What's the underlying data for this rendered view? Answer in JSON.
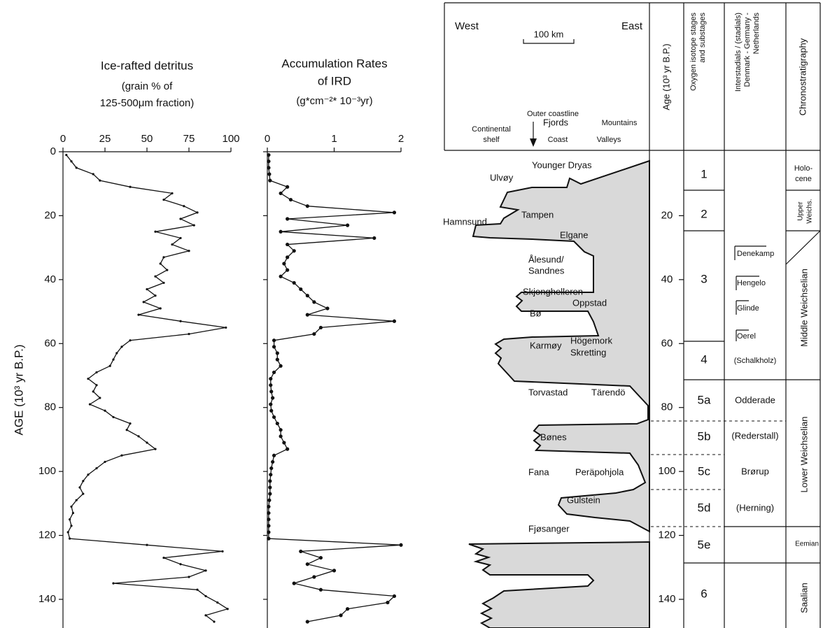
{
  "chart_data": [
    {
      "type": "line",
      "title": [
        "Ice-rafted detritus"
      ],
      "subtitle": [
        "(grain % of",
        "125-500μm fraction)"
      ],
      "ylabel": "AGE (10³ yr B.P.)",
      "xlim": [
        0,
        100
      ],
      "xticks": [
        0,
        25,
        50,
        75,
        100
      ],
      "ylim": [
        0,
        148
      ],
      "yticks": [
        0,
        20,
        40,
        60,
        80,
        100,
        120,
        140
      ],
      "y": [
        1,
        3,
        5,
        7,
        9,
        11,
        13,
        15,
        17,
        19,
        21,
        23,
        25,
        27,
        29,
        31,
        33,
        35,
        37,
        39,
        41,
        43,
        45,
        47,
        49,
        51,
        53,
        55,
        57,
        59,
        61,
        63,
        65,
        67,
        69,
        71,
        73,
        75,
        77,
        79,
        81,
        83,
        85,
        87,
        89,
        91,
        93,
        95,
        97,
        99,
        101,
        103,
        105,
        107,
        109,
        111,
        113,
        115,
        117,
        119,
        121,
        123,
        125,
        127,
        129,
        131,
        133,
        135,
        137,
        139,
        141,
        143,
        145,
        147
      ],
      "series": [
        {
          "color": "#111111",
          "values": [
            2,
            5,
            8,
            18,
            22,
            40,
            65,
            60,
            72,
            80,
            70,
            78,
            55,
            70,
            65,
            75,
            60,
            58,
            62,
            55,
            60,
            50,
            55,
            48,
            58,
            45,
            70,
            97,
            75,
            40,
            35,
            32,
            30,
            28,
            20,
            15,
            20,
            18,
            22,
            16,
            25,
            30,
            40,
            38,
            45,
            50,
            55,
            35,
            25,
            20,
            15,
            12,
            10,
            12,
            8,
            5,
            6,
            4,
            5,
            3,
            4,
            50,
            95,
            60,
            70,
            85,
            75,
            30,
            80,
            85,
            92,
            98,
            85,
            90
          ]
        }
      ]
    },
    {
      "type": "line",
      "title": [
        "Accumulation Rates",
        "of IRD"
      ],
      "subtitle": [
        "(g*cm⁻²* 10⁻³yr)"
      ],
      "xlim": [
        0,
        2
      ],
      "xticks": [
        0,
        1,
        2
      ],
      "ylim": [
        0,
        148
      ],
      "yticks": [
        0,
        20,
        40,
        60,
        80,
        100,
        120,
        140
      ],
      "y": [
        1,
        3,
        5,
        7,
        9,
        11,
        13,
        15,
        17,
        19,
        21,
        23,
        25,
        27,
        29,
        31,
        33,
        35,
        37,
        39,
        41,
        43,
        45,
        47,
        49,
        51,
        53,
        55,
        57,
        59,
        61,
        63,
        65,
        67,
        69,
        71,
        73,
        75,
        77,
        79,
        81,
        83,
        85,
        87,
        89,
        91,
        93,
        95,
        97,
        99,
        101,
        103,
        105,
        107,
        109,
        111,
        113,
        115,
        117,
        119,
        121,
        123,
        125,
        127,
        129,
        131,
        133,
        135,
        137,
        139,
        141,
        143,
        145,
        147
      ],
      "series": [
        {
          "color": "#111111",
          "values": [
            0.02,
            0.02,
            0.02,
            0.03,
            0.04,
            0.3,
            0.2,
            0.35,
            0.6,
            1.9,
            0.3,
            1.2,
            0.2,
            1.6,
            0.3,
            0.4,
            0.3,
            0.25,
            0.3,
            0.2,
            0.4,
            0.5,
            0.6,
            0.7,
            0.9,
            0.6,
            1.9,
            0.8,
            0.7,
            0.1,
            0.1,
            0.15,
            0.15,
            0.2,
            0.1,
            0.05,
            0.05,
            0.06,
            0.08,
            0.05,
            0.06,
            0.1,
            0.15,
            0.2,
            0.2,
            0.25,
            0.3,
            0.1,
            0.08,
            0.06,
            0.05,
            0.04,
            0.04,
            0.04,
            0.03,
            0.02,
            0.02,
            0.02,
            0.02,
            0.02,
            0.02,
            2,
            0.5,
            0.8,
            0.6,
            1.0,
            0.7,
            0.4,
            0.8,
            1.9,
            1.8,
            1.2,
            1.1,
            0.6
          ]
        }
      ]
    }
  ],
  "diagram": {
    "map_header": {
      "west": "West",
      "scale": "100 km",
      "east": "East",
      "outer_coastline": "Outer coastline",
      "continental_shelf": [
        "Continental",
        "shelf"
      ],
      "fjords": "Fjords",
      "mountains": "Mountains",
      "coast": "Coast",
      "valleys": "Valleys"
    },
    "column_headers": {
      "age": "Age (10³ yr B.P.)",
      "oxygen": [
        "Oxygen isotope stages",
        "and substages"
      ],
      "interstadials": [
        "Interstadials / (stadials)",
        "Denmark - Germany -",
        "Netherlands"
      ],
      "chrono": "Chronostratigraphy"
    },
    "glacier_labels": [
      "Younger Dryas",
      "Ulvøy",
      "Tampen",
      "Hamnsund",
      "Elgane",
      "Ålesund/",
      "Sandnes",
      "Skjonghelleren",
      "Oppstad",
      "Bø",
      "Karmøy",
      "Högemork",
      "Skretting",
      "Torvastad",
      "Tärendö",
      "Bønes",
      "Fana",
      "Peräpohjola",
      "Gulstein",
      "Fjøsanger"
    ],
    "age_ticks": [
      20,
      40,
      60,
      80,
      100,
      120,
      140
    ],
    "oxygen_stages": [
      "1",
      "2",
      "3",
      "4",
      "5a",
      "5b",
      "5c",
      "5d",
      "5e",
      "6"
    ],
    "interstadials": [
      "Denekamp",
      "Hengelo",
      "Glinde",
      "Oerel",
      "(Schalkholz)",
      "Odderade",
      "(Rederstall)",
      "Brørup",
      "(Herning)"
    ],
    "chronostratigraphy": [
      [
        "Holo-",
        "cene"
      ],
      [
        "Upper",
        "Weichs."
      ],
      "Middle Weichselian",
      "Lower Weichselian",
      "Eemian",
      "Saalian"
    ]
  }
}
